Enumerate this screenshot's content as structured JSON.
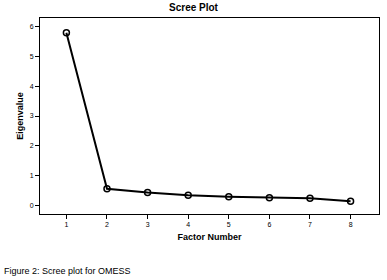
{
  "chart_data": {
    "type": "line",
    "title": "Scree Plot",
    "x_label": "Factor Number",
    "y_label": "Eigenvalue",
    "x": [
      1,
      2,
      3,
      4,
      5,
      6,
      7,
      8
    ],
    "values": [
      5.8,
      0.55,
      0.42,
      0.33,
      0.28,
      0.25,
      0.23,
      0.13
    ],
    "color": "#000000",
    "marker": "open_circle",
    "line_style": "solid",
    "xlim": [
      0.35,
      8.7
    ],
    "xticks": [
      1,
      2,
      3,
      4,
      5,
      6,
      7,
      8
    ],
    "ylim": [
      -0.3,
      6.3
    ],
    "yticks": [
      0,
      1,
      2,
      3,
      4,
      5,
      6
    ],
    "grid": false,
    "annotations": [
      "Figure 2: Scree plot for OMESS"
    ]
  }
}
